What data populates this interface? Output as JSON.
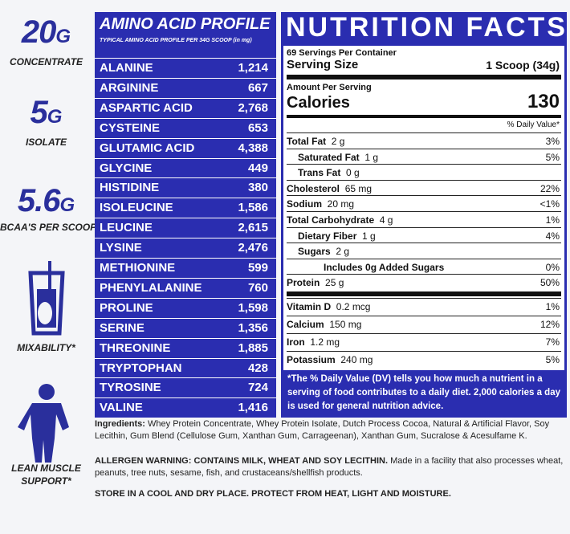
{
  "sidebar": [
    {
      "number": "20",
      "unit": "G",
      "caption": "CONCENTRATE"
    },
    {
      "number": "5",
      "unit": "G",
      "caption": "ISOLATE"
    },
    {
      "number": "5.6",
      "unit": "G",
      "caption": "BCAA'S PER SCOOP"
    },
    {
      "caption": "MIXABILITY*"
    },
    {
      "caption": "LEAN MUSCLE SUPPORT*"
    }
  ],
  "amino": {
    "title": "AMINO ACID PROFILE",
    "subtitle": "TYPICAL AMINO ACID PROFILE PER 34G SCOOP (in mg)",
    "rows": [
      [
        "ALANINE",
        "1,214"
      ],
      [
        "ARGININE",
        "667"
      ],
      [
        "ASPARTIC ACID",
        "2,768"
      ],
      [
        "CYSTEINE",
        "653"
      ],
      [
        "GLUTAMIC ACID",
        "4,388"
      ],
      [
        "GLYCINE",
        "449"
      ],
      [
        "HISTIDINE",
        "380"
      ],
      [
        "ISOLEUCINE",
        "1,586"
      ],
      [
        "LEUCINE",
        "2,615"
      ],
      [
        "LYSINE",
        "2,476"
      ],
      [
        "METHIONINE",
        "599"
      ],
      [
        "PHENYLALANINE",
        "760"
      ],
      [
        "PROLINE",
        "1,598"
      ],
      [
        "SERINE",
        "1,356"
      ],
      [
        "THREONINE",
        "1,885"
      ],
      [
        "TRYPTOPHAN",
        "428"
      ],
      [
        "TYROSINE",
        "724"
      ],
      [
        "VALINE",
        "1,416"
      ]
    ]
  },
  "nutrition": {
    "title": "NUTRITION FACTS",
    "servings": "69 Servings Per Container",
    "serving_size_label": "Serving Size",
    "serving_size": "1 Scoop (34g)",
    "amount_per_serving": "Amount Per Serving",
    "calories_label": "Calories",
    "calories": "130",
    "dv_header": "% Daily Value*",
    "rows": [
      {
        "label": "Total Fat",
        "amount": "2 g",
        "dv": "3%"
      },
      {
        "label": "Saturated Fat",
        "amount": "1 g",
        "dv": "5%"
      },
      {
        "label": "Trans Fat",
        "amount": "0 g"
      },
      {
        "label": "Cholesterol",
        "amount": "65 mg",
        "dv": "22%"
      },
      {
        "label": "Sodium",
        "amount": "20 mg",
        "dv": "<1%"
      },
      {
        "label": "Total Carbohydrate",
        "amount": "4 g",
        "dv": "1%"
      },
      {
        "label": "Dietary Fiber",
        "amount": "1 g",
        "dv": "4%"
      },
      {
        "label": "Sugars",
        "amount": "2 g"
      },
      {
        "label": "Includes 0g Added Sugars",
        "dv": "0%"
      },
      {
        "label": "Protein",
        "amount": "25 g",
        "dv": "50%"
      }
    ],
    "vitamins": [
      {
        "label": "Vitamin D",
        "amount": "0.2 mcg",
        "dv": "1%"
      },
      {
        "label": "Calcium",
        "amount": "150 mg",
        "dv": "12%"
      },
      {
        "label": "Iron",
        "amount": "1.2 mg",
        "dv": "7%"
      },
      {
        "label": "Potassium",
        "amount": "240 mg",
        "dv": "5%"
      }
    ],
    "footnote": "*The % Daily Value (DV) tells you how much a nutrient in a serving of food contributes to a daily diet. 2,000 calories a day is used for general nutrition advice."
  },
  "ingredients": {
    "label": "Ingredients:",
    "text": "Whey Protein Concentrate, Whey Protein Isolate, Dutch Process Cocoa, Natural & Artificial Flavor, Soy Lecithin, Gum Blend (Cellulose Gum, Xanthan Gum, Carrageenan), Xanthan Gum, Sucralose & Acesulfame K."
  },
  "allergen": {
    "warning": "ALLERGEN WARNING: CONTAINS MILK, WHEAT AND SOY LECITHIN.",
    "text": "Made in a facility that also processes wheat, peanuts, tree nuts, sesame, fish, and crustaceans/shellfish products."
  },
  "storage": "STORE IN A COOL AND DRY PLACE. PROTECT FROM HEAT, LIGHT AND MOISTURE."
}
